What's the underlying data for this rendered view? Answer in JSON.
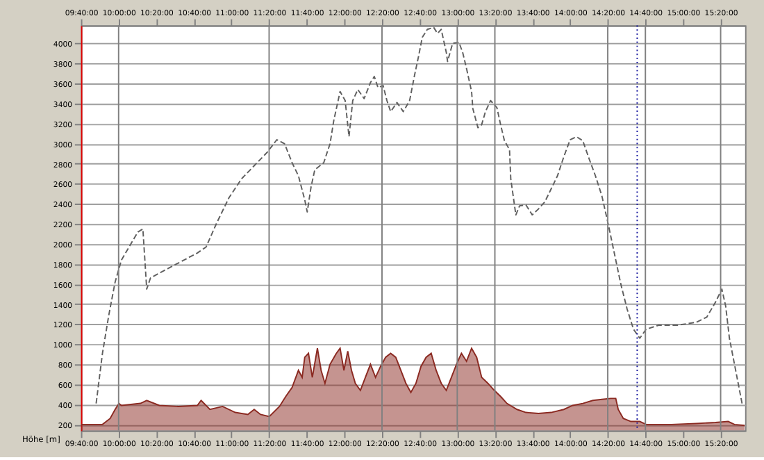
{
  "chart_data": {
    "type": "line",
    "ylabel": "Höhe [m]",
    "xlim": [
      9.6667,
      15.55
    ],
    "ylim": [
      140,
      4180
    ],
    "xticks": [
      {
        "value": 9.6667,
        "label": "09:40:00"
      },
      {
        "value": 10,
        "label": "10:00:00"
      },
      {
        "value": 10.3333,
        "label": "10:20:00"
      },
      {
        "value": 10.6667,
        "label": "10:40:00"
      },
      {
        "value": 11,
        "label": "11:00:00"
      },
      {
        "value": 11.3333,
        "label": "11:20:00"
      },
      {
        "value": 11.6667,
        "label": "11:40:00"
      },
      {
        "value": 12,
        "label": "12:00:00"
      },
      {
        "value": 12.3333,
        "label": "12:20:00"
      },
      {
        "value": 12.6667,
        "label": "12:40:00"
      },
      {
        "value": 13,
        "label": "13:00:00"
      },
      {
        "value": 13.3333,
        "label": "13:20:00"
      },
      {
        "value": 13.6667,
        "label": "13:40:00"
      },
      {
        "value": 14,
        "label": "14:00:00"
      },
      {
        "value": 14.3333,
        "label": "14:20:00"
      },
      {
        "value": 14.6667,
        "label": "14:40:00"
      },
      {
        "value": 15,
        "label": "15:00:00"
      },
      {
        "value": 15.3333,
        "label": "15:20:00"
      }
    ],
    "x2lim": [
      9.6667,
      15.55
    ],
    "x2ticks": [
      {
        "value": 9.6667,
        "label": "09:40:00"
      },
      {
        "value": 10,
        "label": "10:00:00"
      },
      {
        "value": 10.3333,
        "label": "10:20:00"
      },
      {
        "value": 10.6667,
        "label": "10:40:00"
      },
      {
        "value": 11,
        "label": "11:00:00"
      },
      {
        "value": 11.3333,
        "label": "11:20:00"
      },
      {
        "value": 11.6667,
        "label": "11:40:00"
      },
      {
        "value": 12,
        "label": "12:00:00"
      },
      {
        "value": 12.3333,
        "label": "12:20:00"
      },
      {
        "value": 12.6667,
        "label": "12:40:00"
      },
      {
        "value": 13,
        "label": "13:00:00"
      },
      {
        "value": 13.3333,
        "label": "13:20:00"
      },
      {
        "value": 13.6667,
        "label": "13:40:00"
      },
      {
        "value": 14,
        "label": "14:00:00"
      },
      {
        "value": 14.3333,
        "label": "14:20:00"
      },
      {
        "value": 14.6667,
        "label": "14:40:00"
      },
      {
        "value": 15,
        "label": "15:00:00"
      },
      {
        "value": 15.3333,
        "label": "15:20:00"
      }
    ],
    "yticks": [
      200,
      400,
      600,
      800,
      1000,
      1200,
      1400,
      1600,
      1800,
      2000,
      2200,
      2400,
      2600,
      2800,
      3000,
      3200,
      3400,
      3600,
      3800,
      4000
    ],
    "grid": "y",
    "line_style": "dashed",
    "series": [
      {
        "type": "area",
        "color": "#8b2a22",
        "x": [
          9.667,
          9.857,
          9.925,
          9.969,
          10.003,
          10.025,
          10.193,
          10.249,
          10.361,
          10.529,
          10.697,
          10.731,
          10.809,
          10.921,
          11.033,
          11.145,
          11.201,
          11.257,
          11.335,
          11.425,
          11.481,
          11.537,
          11.593,
          11.626,
          11.649,
          11.682,
          11.716,
          11.761,
          11.794,
          11.828,
          11.873,
          11.929,
          11.962,
          11.996,
          12.03,
          12.063,
          12.097,
          12.142,
          12.186,
          12.231,
          12.276,
          12.321,
          12.365,
          12.41,
          12.455,
          12.5,
          12.545,
          12.589,
          12.634,
          12.679,
          12.724,
          12.769,
          12.813,
          12.858,
          12.903,
          12.948,
          12.993,
          13.037,
          13.082,
          13.127,
          13.172,
          13.216,
          13.272,
          13.328,
          13.384,
          13.44,
          13.53,
          13.608,
          13.72,
          13.832,
          13.944,
          14.022,
          14.112,
          14.201,
          14.281,
          14.359,
          14.404,
          14.426,
          14.471,
          14.538,
          14.617,
          14.673,
          14.897,
          15.12,
          15.288,
          15.4,
          15.456,
          15.546
        ],
        "values": [
          200,
          200,
          260,
          350,
          410,
          390,
          410,
          440,
          390,
          380,
          390,
          440,
          350,
          380,
          320,
          300,
          350,
          300,
          280,
          380,
          480,
          570,
          740,
          670,
          870,
          910,
          670,
          960,
          740,
          610,
          800,
          910,
          960,
          740,
          930,
          740,
          610,
          540,
          670,
          800,
          670,
          780,
          870,
          910,
          870,
          740,
          610,
          520,
          610,
          780,
          870,
          910,
          740,
          610,
          540,
          670,
          800,
          910,
          830,
          960,
          870,
          670,
          610,
          540,
          480,
          410,
          350,
          320,
          310,
          320,
          350,
          390,
          410,
          440,
          450,
          460,
          460,
          350,
          260,
          230,
          230,
          200,
          200,
          210,
          220,
          230,
          200,
          190
        ]
      },
      {
        "color": "#606060",
        "x": [
          9.801,
          9.857,
          9.913,
          9.969,
          10.025,
          10.103,
          10.171,
          10.215,
          10.249,
          10.282,
          10.361,
          10.529,
          10.697,
          10.775,
          10.865,
          10.977,
          11.089,
          11.201,
          11.313,
          11.402,
          11.47,
          11.537,
          11.593,
          11.649,
          11.671,
          11.705,
          11.738,
          11.817,
          11.873,
          11.906,
          11.962,
          12.007,
          12.041,
          12.074,
          12.119,
          12.175,
          12.231,
          12.265,
          12.298,
          12.343,
          12.377,
          12.41,
          12.466,
          12.522,
          12.578,
          12.623,
          12.657,
          12.69,
          12.735,
          12.791,
          12.825,
          12.858,
          12.903,
          12.914,
          12.959,
          13.015,
          13.048,
          13.082,
          13.127,
          13.138,
          13.183,
          13.216,
          13.25,
          13.295,
          13.351,
          13.384,
          13.418,
          13.463,
          13.474,
          13.519,
          13.552,
          13.608,
          13.664,
          13.72,
          13.776,
          13.832,
          13.888,
          13.944,
          14.0,
          14.056,
          14.112,
          14.168,
          14.224,
          14.281,
          14.337,
          14.393,
          14.449,
          14.505,
          14.561,
          14.617,
          14.673,
          14.785,
          14.952,
          15.12,
          15.21,
          15.288,
          15.344,
          15.378,
          15.411,
          15.456,
          15.523
        ],
        "values": [
          410,
          910,
          1290,
          1620,
          1840,
          1990,
          2120,
          2150,
          1550,
          1660,
          1710,
          1810,
          1910,
          1970,
          2200,
          2460,
          2650,
          2780,
          2910,
          3040,
          3000,
          2810,
          2680,
          2440,
          2320,
          2570,
          2740,
          2810,
          3000,
          3230,
          3520,
          3430,
          3070,
          3430,
          3540,
          3450,
          3610,
          3670,
          3560,
          3580,
          3430,
          3320,
          3410,
          3320,
          3430,
          3690,
          3870,
          4060,
          4140,
          4160,
          4100,
          4140,
          3910,
          3820,
          4000,
          4010,
          3910,
          3750,
          3520,
          3350,
          3160,
          3190,
          3320,
          3430,
          3360,
          3190,
          3030,
          2940,
          2650,
          2290,
          2380,
          2390,
          2290,
          2350,
          2420,
          2550,
          2680,
          2870,
          3040,
          3070,
          3030,
          2850,
          2680,
          2480,
          2200,
          1900,
          1600,
          1350,
          1150,
          1060,
          1150,
          1190,
          1190,
          1220,
          1270,
          1420,
          1550,
          1380,
          1060,
          800,
          410
        ]
      }
    ],
    "ref_lines": [
      {
        "axis": "x",
        "value": 10,
        "color": "#808080"
      },
      {
        "axis": "x",
        "value": 11.3333,
        "color": "#808080"
      },
      {
        "axis": "x",
        "value": 12.3333,
        "color": "#808080"
      },
      {
        "axis": "x",
        "value": 13,
        "color": "#808080"
      },
      {
        "axis": "x",
        "value": 13.3333,
        "color": "#808080"
      },
      {
        "axis": "x",
        "value": 14.3333,
        "color": "#808080"
      },
      {
        "axis": "x",
        "value": 14.6667,
        "color": "#808080"
      },
      {
        "axis": "x",
        "value": 15.3333,
        "color": "#808080"
      },
      {
        "axis": "x",
        "value": 14.594,
        "color": "#1a1aa0",
        "line_style": "dotted"
      }
    ]
  }
}
